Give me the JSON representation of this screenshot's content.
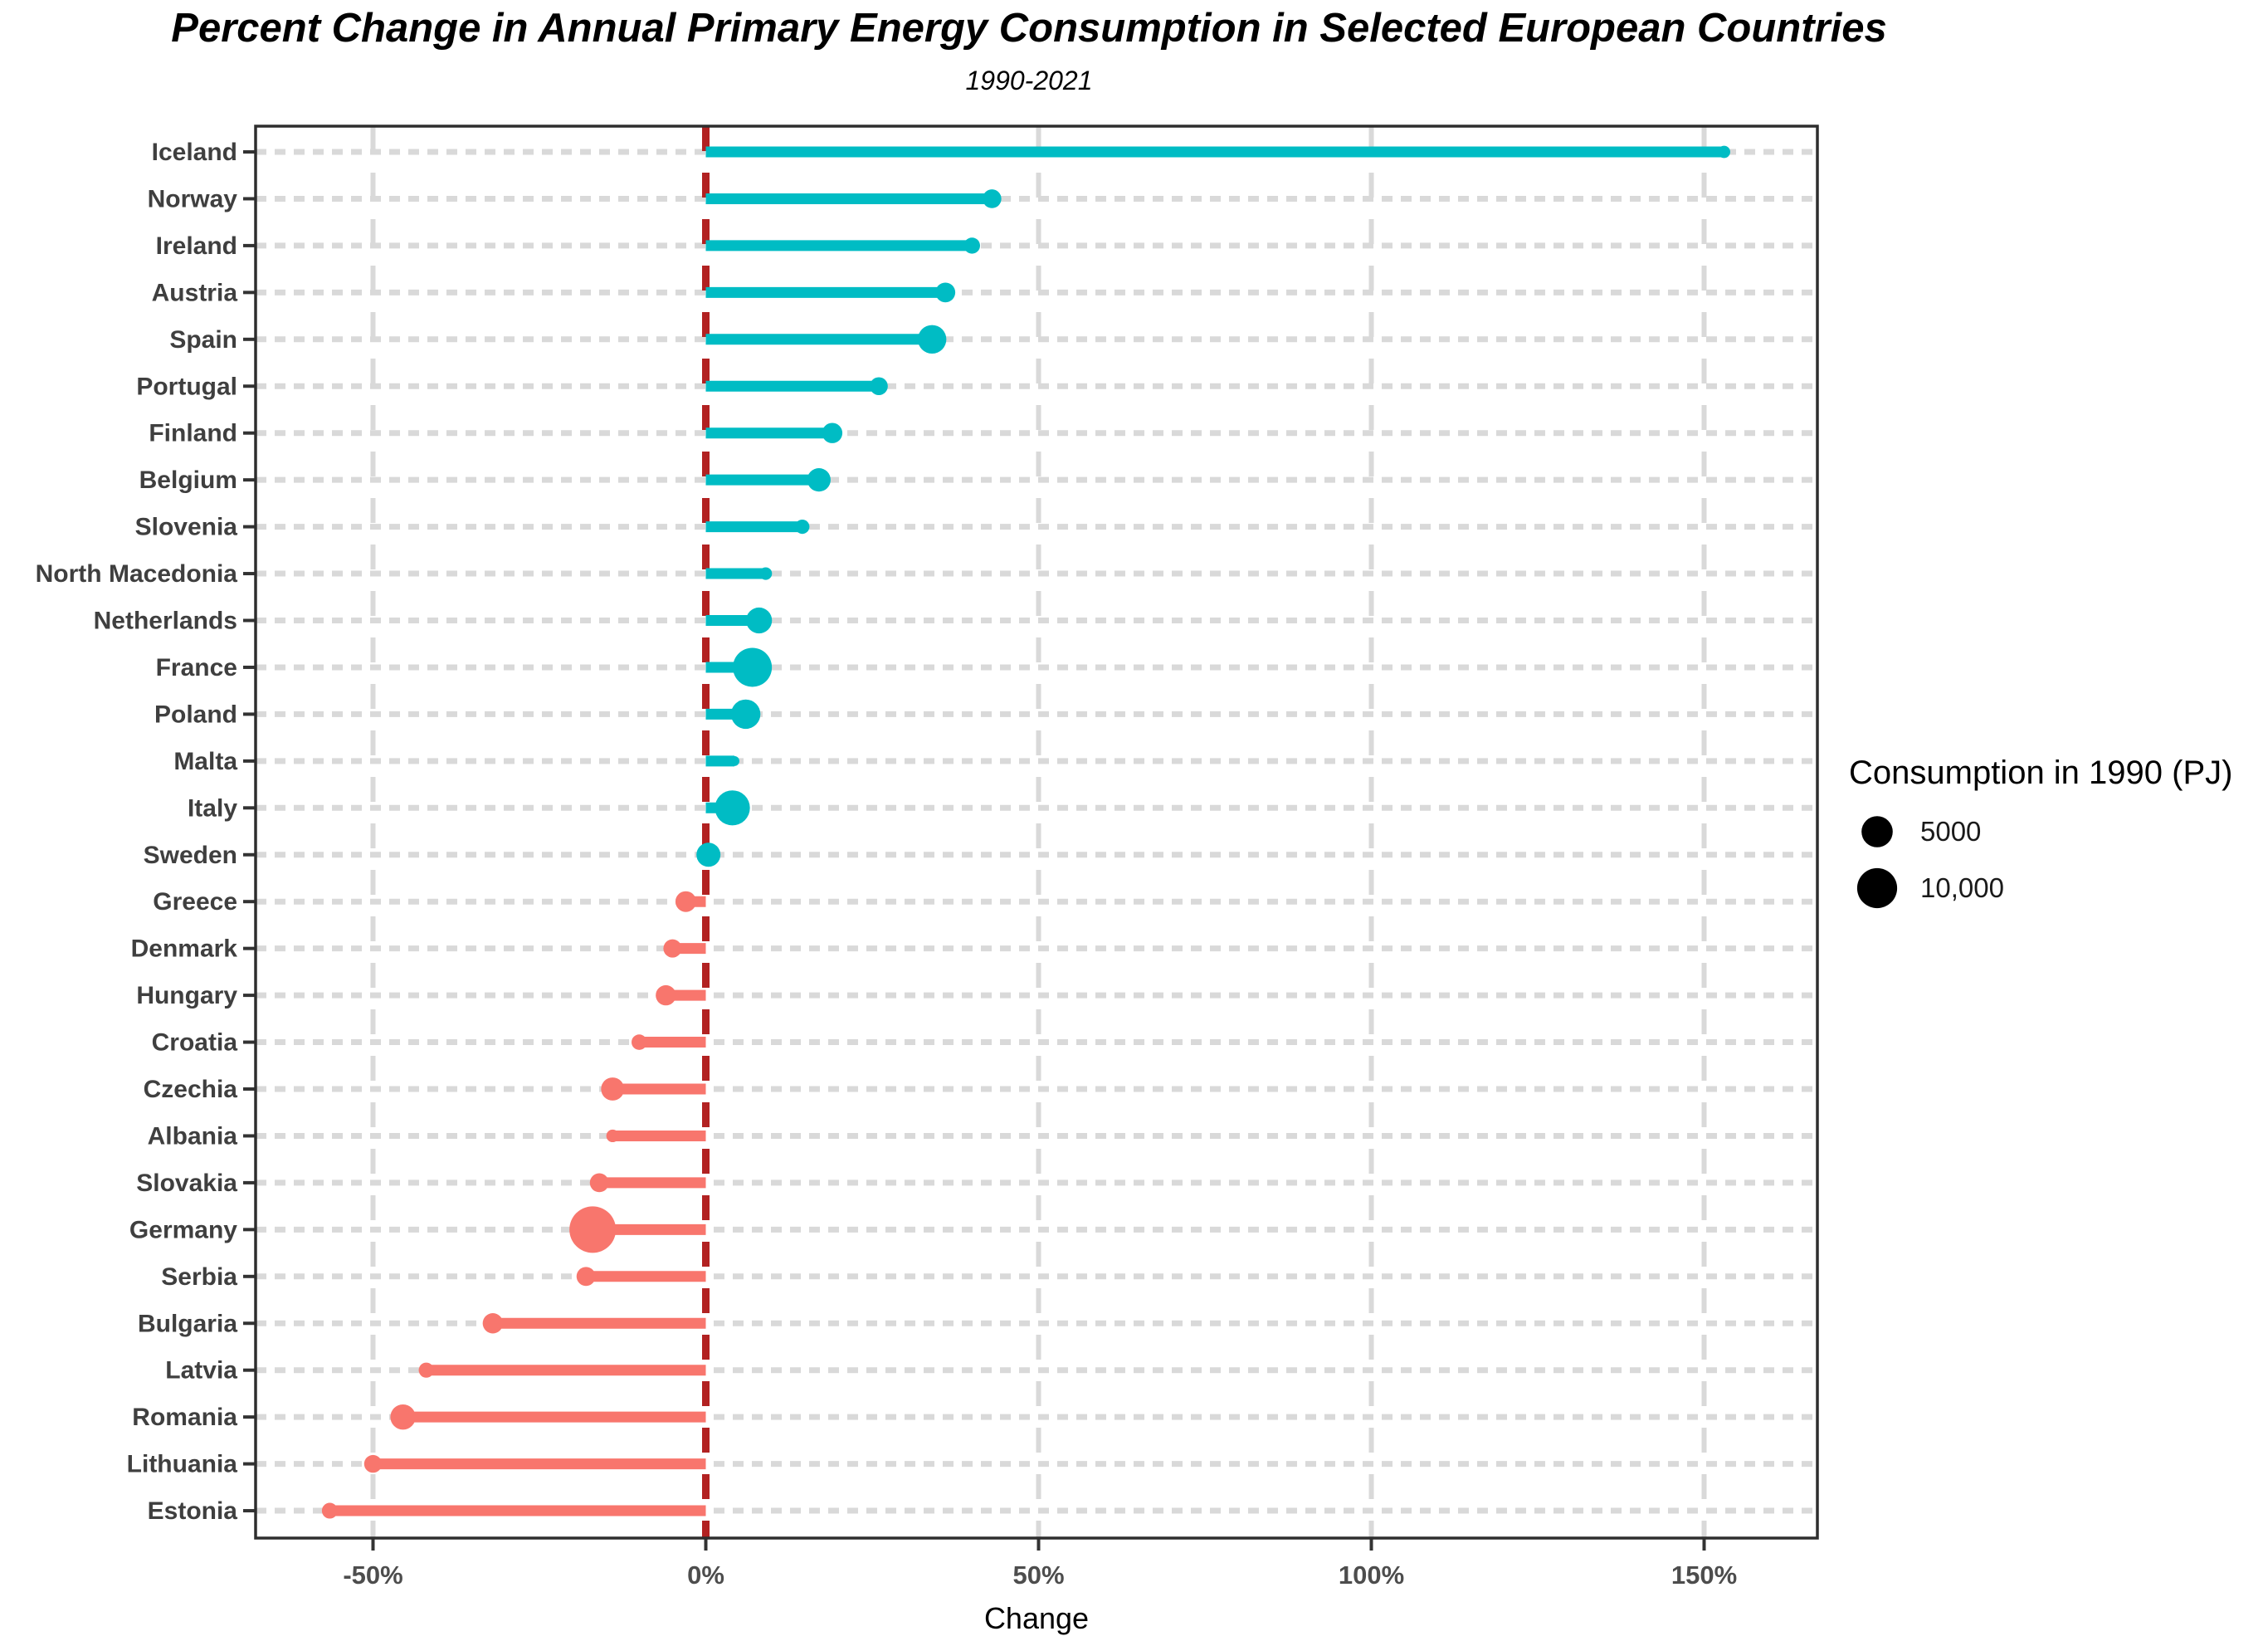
{
  "title": "Percent Change in Annual Primary Energy Consumption in Selected European Countries",
  "subtitle": "1990-2021",
  "chart_data": {
    "type": "lollipop",
    "title": "Percent Change in Annual Primary Energy Consumption in Selected European Countries",
    "subtitle": "1990-2021",
    "xlabel": "Change",
    "ylabel": "",
    "x_range_pct": [
      -67.5,
      167
    ],
    "zero_line_pct": 0,
    "grid": "dashed",
    "x_ticks": [
      {
        "value": -50,
        "label": "-50%"
      },
      {
        "value": 0,
        "label": "0%"
      },
      {
        "value": 50,
        "label": "50%"
      },
      {
        "value": 100,
        "label": "100%"
      },
      {
        "value": 150,
        "label": "150%"
      }
    ],
    "legend": {
      "title": "Consumption in 1990 (PJ)",
      "position": "right",
      "items": [
        {
          "label": "5000",
          "value": 5000
        },
        {
          "label": "10,000",
          "value": 10000
        }
      ]
    },
    "size_domain_pj": [
      30,
      14700
    ],
    "colors": {
      "positive": "#00BCC4",
      "negative": "#F8766D",
      "zero_line": "#B22222",
      "grid": "#D9D9D9",
      "axis_text": "#4D4D4D",
      "label_text": "#3F3F3F",
      "border": "#2E2E2E"
    },
    "series_note": "change_pct = percent change 1990-2021; consumption_1990_pj sets dot size",
    "countries": [
      {
        "name": "Iceland",
        "change_pct": 153,
        "consumption_1990_pj": 90
      },
      {
        "name": "Norway",
        "change_pct": 43,
        "consumption_1990_pj": 880
      },
      {
        "name": "Ireland",
        "change_pct": 40,
        "consumption_1990_pj": 440
      },
      {
        "name": "Austria",
        "change_pct": 36,
        "consumption_1990_pj": 1100
      },
      {
        "name": "Spain",
        "change_pct": 34,
        "consumption_1990_pj": 3800
      },
      {
        "name": "Portugal",
        "change_pct": 26,
        "consumption_1990_pj": 740
      },
      {
        "name": "Finland",
        "change_pct": 19,
        "consumption_1990_pj": 1200
      },
      {
        "name": "Belgium",
        "change_pct": 17,
        "consumption_1990_pj": 2000
      },
      {
        "name": "Slovenia",
        "change_pct": 14.5,
        "consumption_1990_pj": 240
      },
      {
        "name": "North Macedonia",
        "change_pct": 9,
        "consumption_1990_pj": 110
      },
      {
        "name": "Netherlands",
        "change_pct": 8,
        "consumption_1990_pj": 2800
      },
      {
        "name": "France",
        "change_pct": 7,
        "consumption_1990_pj": 9300
      },
      {
        "name": "Poland",
        "change_pct": 6,
        "consumption_1990_pj": 4200
      },
      {
        "name": "Malta",
        "change_pct": 4.3,
        "consumption_1990_pj": 30
      },
      {
        "name": "Italy",
        "change_pct": 4,
        "consumption_1990_pj": 6900
      },
      {
        "name": "Sweden",
        "change_pct": 0.4,
        "consumption_1990_pj": 2200
      },
      {
        "name": "Greece",
        "change_pct": -3,
        "consumption_1990_pj": 1300
      },
      {
        "name": "Denmark",
        "change_pct": -5,
        "consumption_1990_pj": 800
      },
      {
        "name": "Hungary",
        "change_pct": -6,
        "consumption_1990_pj": 1200
      },
      {
        "name": "Croatia",
        "change_pct": -10,
        "consumption_1990_pj": 370
      },
      {
        "name": "Czechia",
        "change_pct": -14,
        "consumption_1990_pj": 1900
      },
      {
        "name": "Albania",
        "change_pct": -14,
        "consumption_1990_pj": 110
      },
      {
        "name": "Slovakia",
        "change_pct": -16,
        "consumption_1990_pj": 900
      },
      {
        "name": "Germany",
        "change_pct": -17,
        "consumption_1990_pj": 14700
      },
      {
        "name": "Serbia",
        "change_pct": -18,
        "consumption_1990_pj": 900
      },
      {
        "name": "Bulgaria",
        "change_pct": -32,
        "consumption_1990_pj": 1200
      },
      {
        "name": "Latvia",
        "change_pct": -42,
        "consumption_1990_pj": 330
      },
      {
        "name": "Romania",
        "change_pct": -45.5,
        "consumption_1990_pj": 2600
      },
      {
        "name": "Lithuania",
        "change_pct": -50,
        "consumption_1990_pj": 700
      },
      {
        "name": "Estonia",
        "change_pct": -56.5,
        "consumption_1990_pj": 400
      }
    ]
  }
}
